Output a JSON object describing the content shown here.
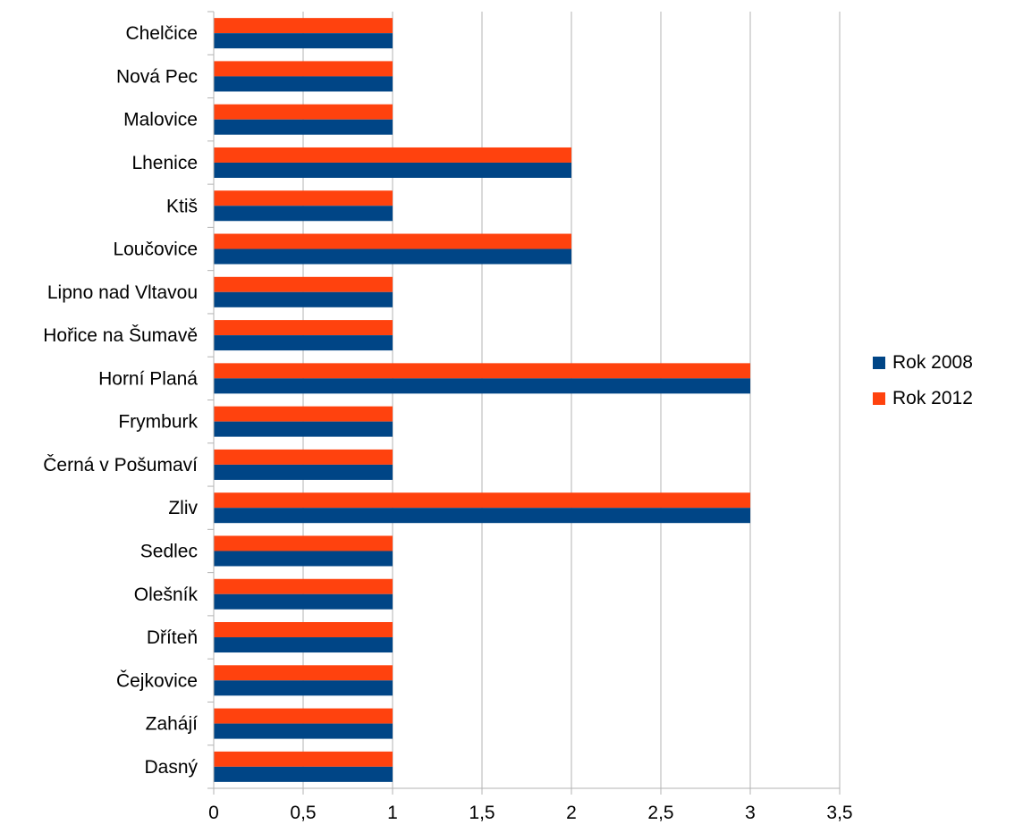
{
  "chart_data": {
    "type": "bar",
    "orientation": "horizontal",
    "categories": [
      "Chelčice",
      "Nová Pec",
      "Malovice",
      "Lhenice",
      "Ktiš",
      "Loučovice",
      "Lipno nad Vltavou",
      "Hořice na Šumavě",
      "Horní Planá",
      "Frymburk",
      "Černá v Pošumaví",
      "Zliv",
      "Sedlec",
      "Olešník",
      "Dříteň",
      "Čejkovice",
      "Zahájí",
      "Dasný"
    ],
    "series": [
      {
        "name": "Rok 2008",
        "color": "#004586",
        "values": [
          1,
          1,
          1,
          2,
          1,
          2,
          1,
          1,
          3,
          1,
          1,
          3,
          1,
          1,
          1,
          1,
          1,
          1
        ]
      },
      {
        "name": "Rok 2012",
        "color": "#ff420e",
        "values": [
          1,
          1,
          1,
          2,
          1,
          2,
          1,
          1,
          3,
          1,
          1,
          3,
          1,
          1,
          1,
          1,
          1,
          1
        ]
      }
    ],
    "xlim": [
      0,
      3.5
    ],
    "xticks": [
      "0",
      "0,5",
      "1",
      "1,5",
      "2",
      "2,5",
      "3",
      "3,5"
    ],
    "grid": true,
    "legend_position": "right"
  }
}
